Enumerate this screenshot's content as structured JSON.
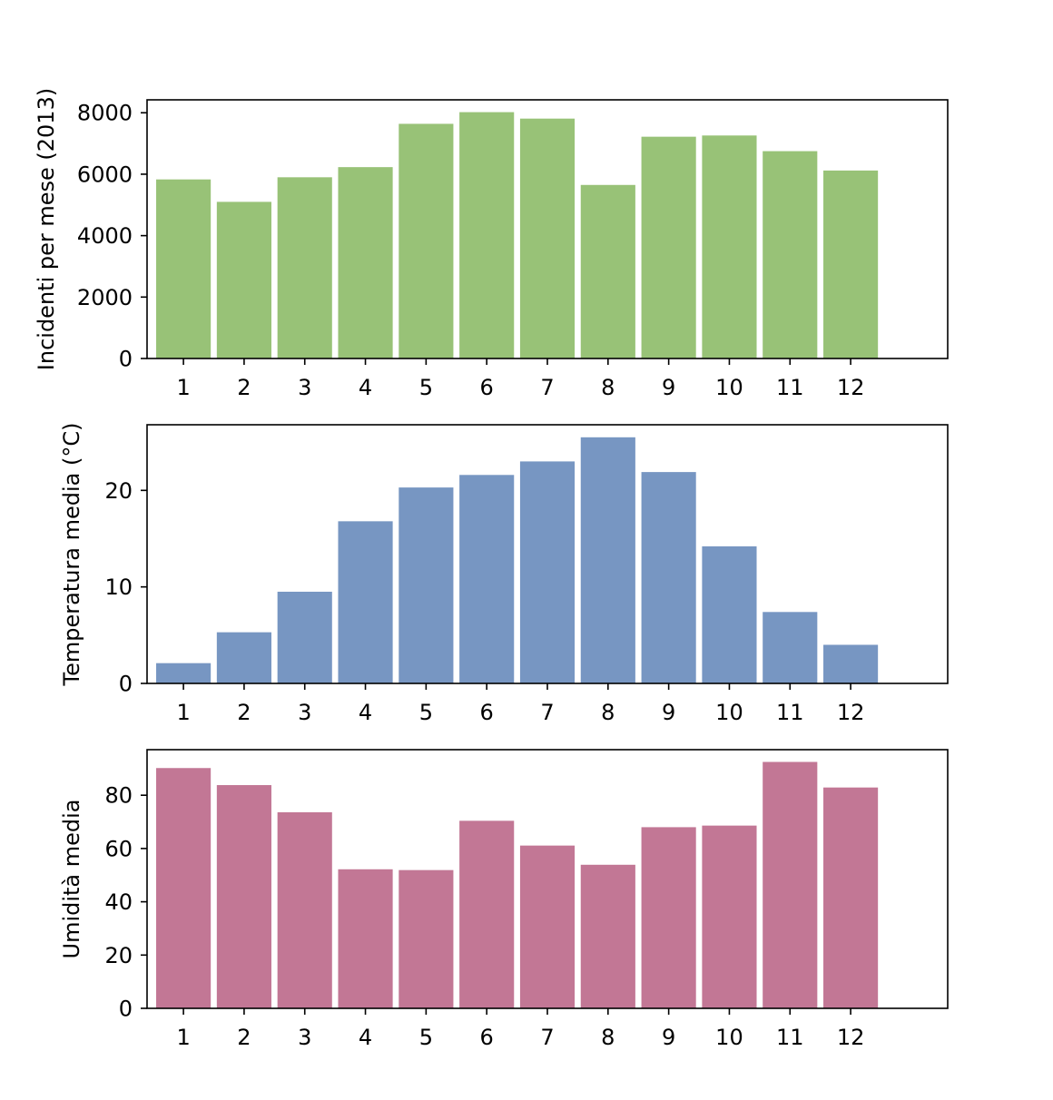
{
  "chart_data": [
    {
      "type": "bar",
      "categories": [
        "1",
        "2",
        "3",
        "4",
        "5",
        "6",
        "7",
        "8",
        "9",
        "10",
        "11",
        "12"
      ],
      "values": [
        5830,
        5100,
        5900,
        6230,
        7640,
        8020,
        7810,
        5650,
        7220,
        7260,
        6750,
        6120
      ],
      "title": "",
      "xlabel": "",
      "ylabel": "Incidenti per mese (2013)",
      "ylim": [
        0,
        8421
      ],
      "yticks": [
        "0",
        "2000",
        "4000",
        "6000",
        "8000"
      ],
      "color": "#98c277",
      "grid": false
    },
    {
      "type": "bar",
      "categories": [
        "1",
        "2",
        "3",
        "4",
        "5",
        "6",
        "7",
        "8",
        "9",
        "10",
        "11",
        "12"
      ],
      "values": [
        2.1,
        5.3,
        9.5,
        16.8,
        20.3,
        21.6,
        23.0,
        25.5,
        21.9,
        14.2,
        7.4,
        4.0
      ],
      "title": "",
      "xlabel": "",
      "ylabel": "Temperatura media (°C)",
      "ylim": [
        0,
        26.8
      ],
      "yticks": [
        "0",
        "10",
        "20"
      ],
      "color": "#7796c2",
      "grid": false
    },
    {
      "type": "bar",
      "categories": [
        "1",
        "2",
        "3",
        "4",
        "5",
        "6",
        "7",
        "8",
        "9",
        "10",
        "11",
        "12"
      ],
      "values": [
        90.2,
        83.8,
        73.6,
        52.2,
        51.9,
        70.4,
        61.1,
        53.9,
        68.0,
        68.6,
        92.5,
        82.9
      ],
      "title": "",
      "xlabel": "",
      "ylabel": "Umidità media",
      "ylim": [
        0,
        97.1
      ],
      "yticks": [
        "0",
        "20",
        "40",
        "60",
        "80"
      ],
      "color": "#c27795",
      "grid": false
    }
  ]
}
